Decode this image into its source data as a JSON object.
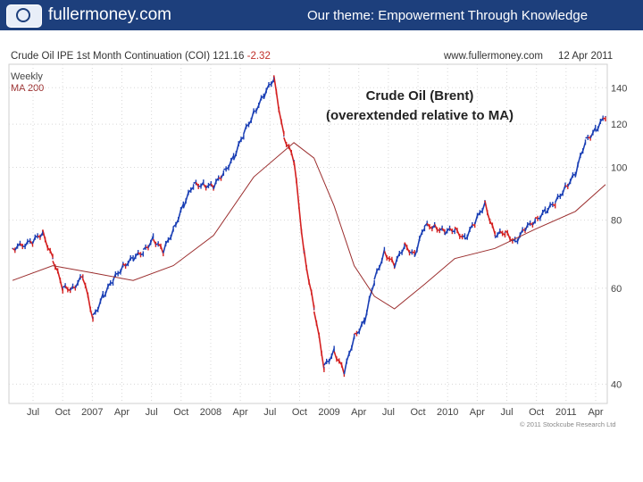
{
  "header": {
    "site_name": "fullermoney.com",
    "theme": "Our theme: Empowerment Through Knowledge",
    "brand_color": "#1d3f7c"
  },
  "chart_header": {
    "instrument": "Crude Oil IPE 1st Month Continuation (COI) 121.16",
    "change": "-2.32",
    "website": "www.fullermoney.com",
    "date": "12 Apr 2011"
  },
  "legend": {
    "frequency": "Weekly",
    "ma": "MA 200"
  },
  "annotation": {
    "line1": "Crude Oil (Brent)",
    "line2": "(overextended relative to MA)"
  },
  "copyright": "© 2011 Stockcube Research Ltd",
  "chart_data": {
    "type": "line",
    "y_scale": "log",
    "ylim": [
      38,
      150
    ],
    "y_ticks": [
      140,
      120,
      100,
      80,
      60,
      40
    ],
    "x_tick_labels": [
      "Jul",
      "Oct",
      "2007",
      "Apr",
      "Jul",
      "Oct",
      "2008",
      "Apr",
      "Jul",
      "Oct",
      "2009",
      "Apr",
      "Jul",
      "Oct",
      "2010",
      "Apr",
      "Jul",
      "Oct",
      "2011",
      "Apr"
    ],
    "x_range": [
      "2006-05",
      "2011-04"
    ],
    "grid": true,
    "up_color": "#1a3fb5",
    "down_color": "#d42020",
    "ma_color": "#9b2e2e",
    "series": [
      {
        "name": "Weekly",
        "x": [
          "2006-05",
          "2006-07",
          "2006-08",
          "2006-09",
          "2006-10",
          "2006-11",
          "2006-12",
          "2007-01",
          "2007-02",
          "2007-03",
          "2007-04",
          "2007-05",
          "2007-06",
          "2007-07",
          "2007-08",
          "2007-09",
          "2007-10",
          "2007-11",
          "2007-12",
          "2008-01",
          "2008-02",
          "2008-03",
          "2008-04",
          "2008-05",
          "2008-06",
          "2008-07",
          "2008-08",
          "2008-09",
          "2008-10",
          "2008-11",
          "2008-12",
          "2009-01",
          "2009-02",
          "2009-03",
          "2009-04",
          "2009-05",
          "2009-06",
          "2009-07",
          "2009-08",
          "2009-09",
          "2009-10",
          "2009-11",
          "2009-12",
          "2010-01",
          "2010-02",
          "2010-03",
          "2010-04",
          "2010-05",
          "2010-06",
          "2010-07",
          "2010-08",
          "2010-09",
          "2010-10",
          "2010-11",
          "2010-12",
          "2011-01",
          "2011-02",
          "2011-03",
          "2011-04"
        ],
        "values": [
          71,
          73,
          76,
          68,
          60,
          60,
          63,
          53,
          58,
          62,
          66,
          68,
          70,
          74,
          70,
          77,
          85,
          93,
          93,
          92,
          98,
          104,
          115,
          126,
          135,
          146,
          114,
          103,
          70,
          55,
          43,
          46,
          42,
          49,
          52,
          62,
          70,
          66,
          72,
          69,
          78,
          78,
          76,
          77,
          74,
          79,
          86,
          75,
          76,
          73,
          77,
          80,
          83,
          86,
          92,
          97,
          112,
          117,
          124
        ]
      },
      {
        "name": "MA 200",
        "x": [
          "2006-05",
          "2006-09",
          "2007-01",
          "2007-05",
          "2007-09",
          "2008-01",
          "2008-05",
          "2008-09",
          "2008-11",
          "2009-01",
          "2009-03",
          "2009-05",
          "2009-07",
          "2009-10",
          "2010-01",
          "2010-05",
          "2010-09",
          "2011-01",
          "2011-04"
        ],
        "values": [
          62,
          66,
          64,
          62,
          66,
          75,
          96,
          111,
          104,
          85,
          66,
          58,
          55,
          61,
          68,
          71,
          77,
          83,
          93
        ]
      }
    ]
  }
}
